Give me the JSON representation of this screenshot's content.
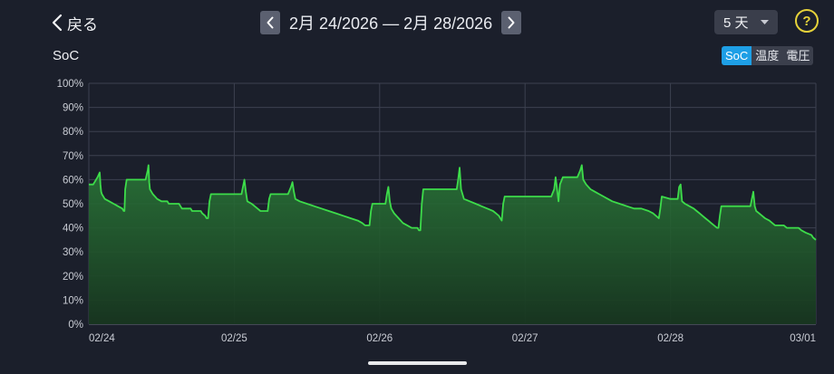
{
  "header": {
    "back_label": "戻る",
    "date_range": "2月 24/2026 — 2月 28/2026",
    "range_value": "5 天",
    "help_symbol": "?"
  },
  "chart_header": {
    "title": "SoC",
    "tabs": [
      {
        "label": "SoC",
        "active": true
      },
      {
        "label": "温度",
        "active": false
      },
      {
        "label": "電圧",
        "active": false
      }
    ]
  },
  "colors": {
    "line": "#3ddc4a",
    "fill": "#1f5a2c",
    "active_tab": "#1e9fe6",
    "help": "#e6d23a"
  },
  "chart_data": {
    "type": "area",
    "title": "SoC",
    "xlabel": "",
    "ylabel": "",
    "ylim": [
      0,
      100
    ],
    "yticks": [
      "0%",
      "10%",
      "20%",
      "30%",
      "40%",
      "50%",
      "60%",
      "70%",
      "80%",
      "90%",
      "100%"
    ],
    "xlim": [
      0,
      5
    ],
    "xticks": [
      {
        "x": 0,
        "label": "02/24"
      },
      {
        "x": 1,
        "label": "02/25"
      },
      {
        "x": 2,
        "label": "02/26"
      },
      {
        "x": 3,
        "label": "02/27"
      },
      {
        "x": 4,
        "label": "02/28"
      },
      {
        "x": 5,
        "label": "03/01"
      }
    ],
    "grid": true,
    "series": [
      {
        "points": [
          [
            0.0,
            58
          ],
          [
            0.03,
            58
          ],
          [
            0.06,
            61
          ],
          [
            0.075,
            63
          ],
          [
            0.08,
            58
          ],
          [
            0.085,
            55
          ],
          [
            0.09,
            54
          ],
          [
            0.11,
            52
          ],
          [
            0.14,
            51
          ],
          [
            0.17,
            50
          ],
          [
            0.2,
            49
          ],
          [
            0.23,
            48
          ],
          [
            0.24,
            47
          ],
          [
            0.245,
            47
          ],
          [
            0.25,
            56
          ],
          [
            0.26,
            60
          ],
          [
            0.39,
            60
          ],
          [
            0.405,
            64
          ],
          [
            0.41,
            66
          ],
          [
            0.415,
            59
          ],
          [
            0.42,
            56
          ],
          [
            0.44,
            54
          ],
          [
            0.47,
            52
          ],
          [
            0.5,
            51
          ],
          [
            0.54,
            51
          ],
          [
            0.55,
            50
          ],
          [
            0.62,
            50
          ],
          [
            0.63,
            49
          ],
          [
            0.64,
            48
          ],
          [
            0.7,
            48
          ],
          [
            0.71,
            47
          ],
          [
            0.77,
            47
          ],
          [
            0.78,
            46
          ],
          [
            0.8,
            45
          ],
          [
            0.81,
            44
          ],
          [
            0.82,
            44
          ],
          [
            0.83,
            51
          ],
          [
            0.84,
            54
          ],
          [
            1.05,
            54
          ],
          [
            1.06,
            57
          ],
          [
            1.07,
            60
          ],
          [
            1.08,
            55
          ],
          [
            1.09,
            51
          ],
          [
            1.12,
            50
          ],
          [
            1.14,
            49
          ],
          [
            1.16,
            48
          ],
          [
            1.18,
            47
          ],
          [
            1.23,
            47
          ],
          [
            1.24,
            52
          ],
          [
            1.25,
            54
          ],
          [
            1.37,
            54
          ],
          [
            1.39,
            57
          ],
          [
            1.4,
            59
          ],
          [
            1.41,
            55
          ],
          [
            1.42,
            52
          ],
          [
            1.45,
            51
          ],
          [
            1.5,
            50
          ],
          [
            1.55,
            49
          ],
          [
            1.6,
            48
          ],
          [
            1.65,
            47
          ],
          [
            1.7,
            46
          ],
          [
            1.75,
            45
          ],
          [
            1.8,
            44
          ],
          [
            1.85,
            43
          ],
          [
            1.88,
            42
          ],
          [
            1.9,
            41
          ],
          [
            1.93,
            41
          ],
          [
            1.94,
            47
          ],
          [
            1.95,
            50
          ],
          [
            2.04,
            50
          ],
          [
            2.05,
            54
          ],
          [
            2.06,
            57
          ],
          [
            2.07,
            51
          ],
          [
            2.08,
            48
          ],
          [
            2.1,
            46
          ],
          [
            2.13,
            44
          ],
          [
            2.16,
            42
          ],
          [
            2.19,
            41
          ],
          [
            2.22,
            40
          ],
          [
            2.26,
            40
          ],
          [
            2.27,
            39
          ],
          [
            2.28,
            39
          ],
          [
            2.29,
            50
          ],
          [
            2.3,
            56
          ],
          [
            2.53,
            56
          ],
          [
            2.54,
            60
          ],
          [
            2.55,
            65
          ],
          [
            2.56,
            56
          ],
          [
            2.58,
            52
          ],
          [
            2.62,
            51
          ],
          [
            2.66,
            50
          ],
          [
            2.7,
            49
          ],
          [
            2.74,
            48
          ],
          [
            2.78,
            47
          ],
          [
            2.8,
            46
          ],
          [
            2.82,
            45
          ],
          [
            2.83,
            44
          ],
          [
            2.84,
            43
          ],
          [
            2.85,
            50
          ],
          [
            2.86,
            53
          ],
          [
            3.18,
            53
          ],
          [
            3.2,
            56
          ],
          [
            3.21,
            61
          ],
          [
            3.22,
            56
          ],
          [
            3.23,
            51
          ],
          [
            3.24,
            58
          ],
          [
            3.26,
            61
          ],
          [
            3.36,
            61
          ],
          [
            3.38,
            64
          ],
          [
            3.39,
            66
          ],
          [
            3.4,
            60
          ],
          [
            3.42,
            58
          ],
          [
            3.45,
            56
          ],
          [
            3.48,
            55
          ],
          [
            3.51,
            54
          ],
          [
            3.54,
            53
          ],
          [
            3.57,
            52
          ],
          [
            3.6,
            51
          ],
          [
            3.65,
            50
          ],
          [
            3.7,
            49
          ],
          [
            3.75,
            48
          ],
          [
            3.8,
            48
          ],
          [
            3.85,
            47
          ],
          [
            3.88,
            46
          ],
          [
            3.9,
            45
          ],
          [
            3.92,
            44
          ],
          [
            3.93,
            48
          ],
          [
            3.94,
            53
          ],
          [
            4.0,
            52
          ],
          [
            4.05,
            52
          ],
          [
            4.06,
            57
          ],
          [
            4.07,
            58
          ],
          [
            4.08,
            51
          ],
          [
            4.1,
            50
          ],
          [
            4.13,
            49
          ],
          [
            4.16,
            48
          ],
          [
            4.18,
            47
          ],
          [
            4.2,
            46
          ],
          [
            4.22,
            45
          ],
          [
            4.24,
            44
          ],
          [
            4.26,
            43
          ],
          [
            4.28,
            42
          ],
          [
            4.3,
            41
          ],
          [
            4.32,
            40
          ],
          [
            4.33,
            40
          ],
          [
            4.34,
            45
          ],
          [
            4.35,
            49
          ],
          [
            4.55,
            49
          ],
          [
            4.56,
            52
          ],
          [
            4.57,
            55
          ],
          [
            4.58,
            49
          ],
          [
            4.59,
            47
          ],
          [
            4.61,
            46
          ],
          [
            4.63,
            45
          ],
          [
            4.65,
            44
          ],
          [
            4.68,
            43
          ],
          [
            4.7,
            42
          ],
          [
            4.72,
            41
          ],
          [
            4.78,
            41
          ],
          [
            4.8,
            40
          ],
          [
            4.88,
            40
          ],
          [
            4.9,
            39
          ],
          [
            4.93,
            38
          ],
          [
            4.97,
            37
          ],
          [
            4.98,
            36
          ],
          [
            5.0,
            35
          ]
        ]
      }
    ]
  }
}
